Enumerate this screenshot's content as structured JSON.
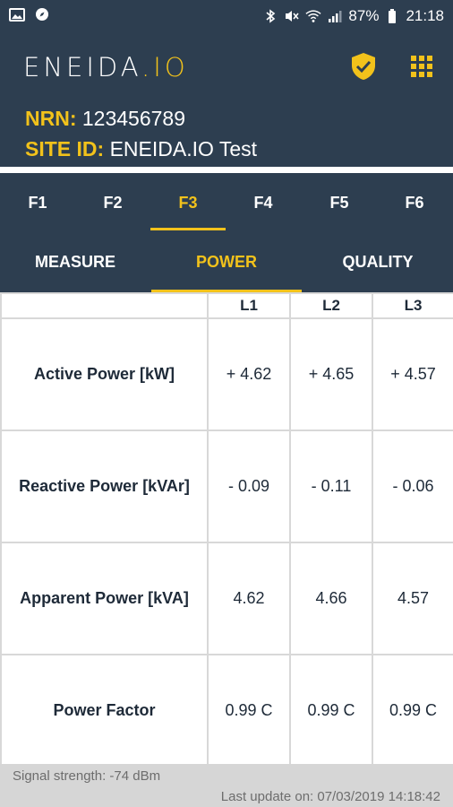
{
  "status_bar": {
    "left_icons": [
      "image-icon",
      "compass-icon"
    ],
    "right_icons": [
      "bluetooth-icon",
      "mute-icon",
      "wifi-icon",
      "signal-icon",
      "battery-icon"
    ],
    "battery": "87%",
    "time": "21:18"
  },
  "app": {
    "logo_main": "ENEIDA",
    "logo_dot": ".",
    "logo_io": "IO",
    "shield_icon": "shield-check-icon",
    "menu_icon": "grid-icon",
    "accent": "#f2c21b",
    "bg": "#2d3e50"
  },
  "site": {
    "nrn_label": "NRN:",
    "nrn_value": "123456789",
    "siteid_label": "SITE ID:",
    "siteid_value": "ENEIDA.IO Test"
  },
  "feeder_tabs": [
    {
      "label": "F1",
      "active": false
    },
    {
      "label": "F2",
      "active": false
    },
    {
      "label": "F3",
      "active": true
    },
    {
      "label": "F4",
      "active": false
    },
    {
      "label": "F5",
      "active": false
    },
    {
      "label": "F6",
      "active": false
    }
  ],
  "view_tabs": [
    {
      "label": "MEASURE",
      "active": false
    },
    {
      "label": "POWER",
      "active": true
    },
    {
      "label": "QUALITY",
      "active": false
    }
  ],
  "table": {
    "headers": [
      "",
      "L1",
      "L2",
      "L3"
    ],
    "rows": [
      {
        "label": "Active Power [kW]",
        "values": [
          "+ 4.62",
          "+ 4.65",
          "+ 4.57"
        ]
      },
      {
        "label": "Reactive Power [kVAr]",
        "values": [
          "- 0.09",
          "- 0.11",
          "- 0.06"
        ]
      },
      {
        "label": "Apparent Power [kVA]",
        "values": [
          "4.62",
          "4.66",
          "4.57"
        ]
      },
      {
        "label": "Power Factor",
        "values": [
          "0.99 C",
          "0.99 C",
          "0.99 C"
        ]
      }
    ]
  },
  "footer": {
    "signal": "Signal strength: -74 dBm",
    "updated": "Last update on: 07/03/2019 14:18:42"
  }
}
